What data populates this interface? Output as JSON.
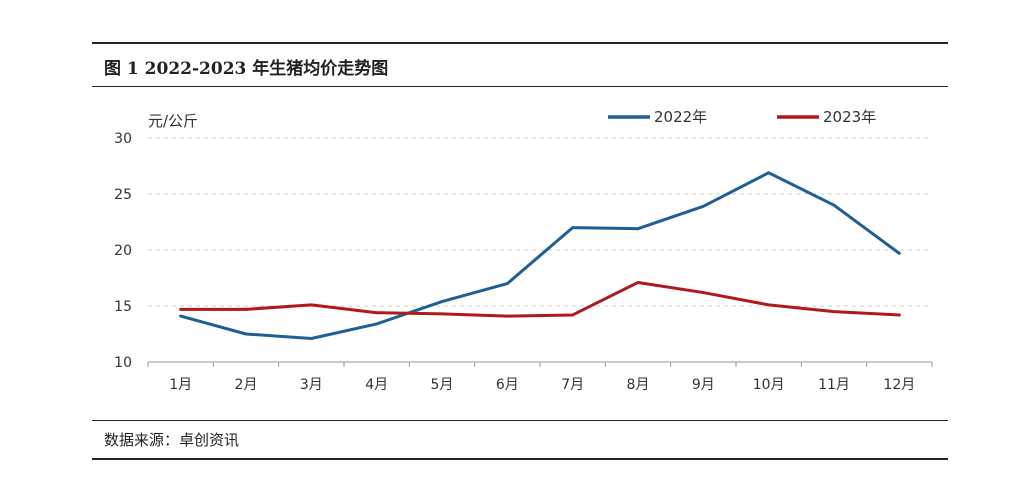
{
  "figure": {
    "title": "图 1 2022-2023 年生猪均价走势图",
    "source": "数据来源：卓创资讯"
  },
  "chart_data": {
    "type": "line",
    "categories": [
      "1月",
      "2月",
      "3月",
      "4月",
      "5月",
      "6月",
      "7月",
      "8月",
      "9月",
      "10月",
      "11月",
      "12月"
    ],
    "y_unit_label": "元/公斤",
    "ylim": [
      10,
      30
    ],
    "yticks": [
      10,
      15,
      20,
      25,
      30
    ],
    "grid": true,
    "legend_position": "top-right",
    "series": [
      {
        "name": "2022年",
        "color": "#1f5f95",
        "values": [
          14.1,
          12.5,
          12.1,
          13.4,
          15.4,
          17.0,
          22.0,
          21.9,
          23.9,
          26.9,
          24.0,
          19.7
        ]
      },
      {
        "name": "2023年",
        "color": "#b01a1a",
        "values": [
          14.7,
          14.7,
          15.1,
          14.4,
          14.3,
          14.1,
          14.2,
          17.1,
          16.2,
          15.1,
          14.5,
          14.2
        ]
      }
    ]
  }
}
